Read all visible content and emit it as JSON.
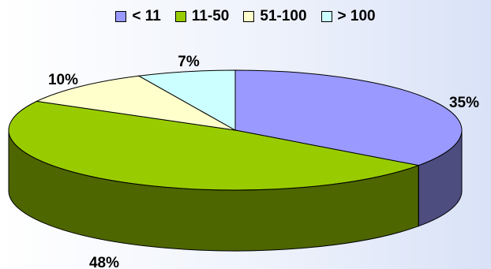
{
  "chart_data": {
    "type": "pie",
    "title": "",
    "categories": [
      "< 11",
      "11-50",
      "51-100",
      "> 100"
    ],
    "values": [
      35,
      48,
      10,
      7
    ],
    "value_labels": [
      "35%",
      "48%",
      "10%",
      "7%"
    ],
    "colors": [
      "#9999ff",
      "#99cc00",
      "#ffffcc",
      "#ccffff"
    ],
    "side_colors": [
      "#4d4d80",
      "#4d6600",
      "#80806a",
      "#6a8080"
    ],
    "legend_position": "top",
    "three_d": true
  }
}
